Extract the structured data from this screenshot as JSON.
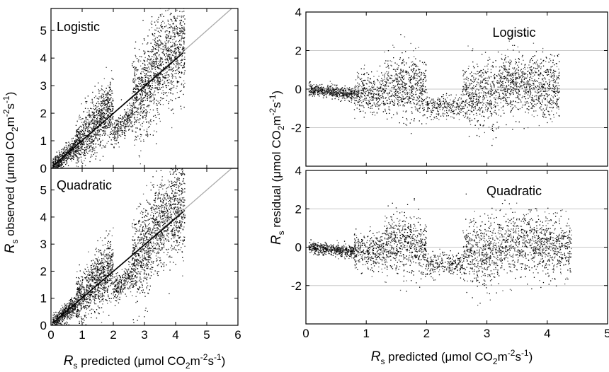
{
  "chart_data": [
    {
      "type": "scatter",
      "panel_label": "Logistic",
      "x_range": [
        0,
        6
      ],
      "y_range": [
        0,
        5.8
      ],
      "x_ticks": [
        "0",
        "1",
        "2",
        "3",
        "4",
        "5",
        "6"
      ],
      "y_ticks": [
        "0",
        "1",
        "2",
        "3",
        "4",
        "5"
      ],
      "reference_line": {
        "kind": "1:1",
        "color": "#aaaaaa"
      },
      "fit_line": {
        "x": [
          0.05,
          4.25
        ],
        "y": [
          0.08,
          4.2
        ],
        "color": "#000000"
      },
      "point_clusters": [
        {
          "x": [
            0.05,
            0.8
          ],
          "y_offset": 0.0,
          "spread": 0.25,
          "count": 500
        },
        {
          "x": [
            0.8,
            1.3
          ],
          "y_offset": 0.1,
          "spread": 0.6,
          "count": 400
        },
        {
          "x": [
            1.3,
            2.0
          ],
          "y_offset": 0.2,
          "spread": 0.7,
          "count": 600
        },
        {
          "x": [
            2.0,
            2.6
          ],
          "y_offset": -0.7,
          "spread": 0.3,
          "count": 250
        },
        {
          "x": [
            2.6,
            3.2
          ],
          "y_offset": -0.2,
          "spread": 0.9,
          "count": 500
        },
        {
          "x": [
            3.2,
            4.3
          ],
          "y_offset": 0.3,
          "spread": 0.9,
          "count": 900
        }
      ]
    },
    {
      "type": "scatter",
      "panel_label": "Quadratic",
      "x_range": [
        0,
        6
      ],
      "y_range": [
        0,
        5.8
      ],
      "x_ticks": [
        "0",
        "1",
        "2",
        "3",
        "4",
        "5",
        "6"
      ],
      "y_ticks": [
        "0",
        "1",
        "2",
        "3",
        "4",
        "5"
      ],
      "reference_line": {
        "kind": "1:1",
        "color": "#aaaaaa"
      },
      "fit_line": {
        "x": [
          0.05,
          4.25
        ],
        "y": [
          0.08,
          4.2
        ],
        "color": "#000000"
      },
      "point_clusters": [
        {
          "x": [
            0.05,
            0.8
          ],
          "y_offset": 0.0,
          "spread": 0.25,
          "count": 500
        },
        {
          "x": [
            0.8,
            1.3
          ],
          "y_offset": 0.1,
          "spread": 0.6,
          "count": 400
        },
        {
          "x": [
            1.3,
            2.0
          ],
          "y_offset": 0.2,
          "spread": 0.7,
          "count": 600
        },
        {
          "x": [
            2.0,
            2.6
          ],
          "y_offset": -0.7,
          "spread": 0.3,
          "count": 250
        },
        {
          "x": [
            2.6,
            3.2
          ],
          "y_offset": -0.2,
          "spread": 0.9,
          "count": 500
        },
        {
          "x": [
            3.2,
            4.3
          ],
          "y_offset": 0.3,
          "spread": 0.9,
          "count": 900
        }
      ]
    },
    {
      "type": "scatter",
      "panel_label": "Logistic",
      "x_range": [
        0,
        5
      ],
      "y_range": [
        -4,
        4
      ],
      "x_ticks": [
        "0",
        "1",
        "2",
        "3",
        "4",
        "5"
      ],
      "y_ticks": [
        "-2",
        "0",
        "2",
        "4"
      ],
      "gridlines_y": [
        -2,
        0,
        2
      ],
      "point_clusters": [
        {
          "x": [
            0.05,
            0.8
          ],
          "y_center": 0.0,
          "slope": -0.35,
          "spread": 0.15,
          "count": 550
        },
        {
          "x": [
            0.8,
            1.3
          ],
          "y_center": -0.2,
          "slope": 0.0,
          "spread": 0.5,
          "count": 350
        },
        {
          "x": [
            1.3,
            2.0
          ],
          "y_center": 0.1,
          "slope": 0.0,
          "spread": 0.8,
          "count": 600
        },
        {
          "x": [
            2.0,
            2.6
          ],
          "y_center": -0.9,
          "slope": 0.0,
          "spread": 0.3,
          "count": 250
        },
        {
          "x": [
            2.6,
            3.2
          ],
          "y_center": -0.3,
          "slope": 0.0,
          "spread": 0.9,
          "count": 500
        },
        {
          "x": [
            3.2,
            4.2
          ],
          "y_center": 0.3,
          "slope": -0.3,
          "spread": 0.8,
          "count": 900
        }
      ]
    },
    {
      "type": "scatter",
      "panel_label": "Quadratic",
      "x_range": [
        0,
        5
      ],
      "y_range": [
        -4,
        4
      ],
      "x_ticks": [
        "0",
        "1",
        "2",
        "3",
        "4",
        "5"
      ],
      "y_ticks": [
        "-2",
        "0",
        "2",
        "4"
      ],
      "gridlines_y": [
        -2,
        0,
        2
      ],
      "point_clusters": [
        {
          "x": [
            0.05,
            0.8
          ],
          "y_center": 0.0,
          "slope": -0.35,
          "spread": 0.15,
          "count": 550
        },
        {
          "x": [
            0.8,
            1.3
          ],
          "y_center": -0.2,
          "slope": 0.0,
          "spread": 0.5,
          "count": 350
        },
        {
          "x": [
            1.3,
            2.0
          ],
          "y_center": 0.1,
          "slope": 0.0,
          "spread": 0.8,
          "count": 600
        },
        {
          "x": [
            2.0,
            2.6
          ],
          "y_center": -0.9,
          "slope": 0.0,
          "spread": 0.3,
          "count": 250
        },
        {
          "x": [
            2.6,
            3.2
          ],
          "y_center": -0.3,
          "slope": 0.0,
          "spread": 0.9,
          "count": 500
        },
        {
          "x": [
            3.2,
            4.4
          ],
          "y_center": 0.3,
          "slope": -0.3,
          "spread": 0.8,
          "count": 950
        }
      ]
    }
  ],
  "axis_labels": {
    "left_y": {
      "sym": "R",
      "sub": "s",
      "text": " observed (μmol CO",
      "sub2": "2",
      "text2": "m",
      "sup1": "-2",
      "text3": "s",
      "sup2": "-1",
      "text4": ")"
    },
    "left_x": {
      "sym": "R",
      "sub": "s",
      "text": " predicted (μmol CO",
      "sub2": "2",
      "text2": "m",
      "sup1": "-2",
      "text3": "s",
      "sup2": "-1",
      "text4": ")"
    },
    "right_y": {
      "sym": "R",
      "sub": "s",
      "text": " residual (μmol CO",
      "sub2": "2",
      "text2": "m",
      "sup1": "-2",
      "text3": "s",
      "sup2": "-1",
      "text4": ")"
    },
    "right_x": {
      "sym": "R",
      "sub": "s",
      "text": " predicted (μmol CO",
      "sub2": "2",
      "text2": "m",
      "sup1": "-2",
      "text3": "s",
      "sup2": "-1",
      "text4": ")"
    }
  }
}
